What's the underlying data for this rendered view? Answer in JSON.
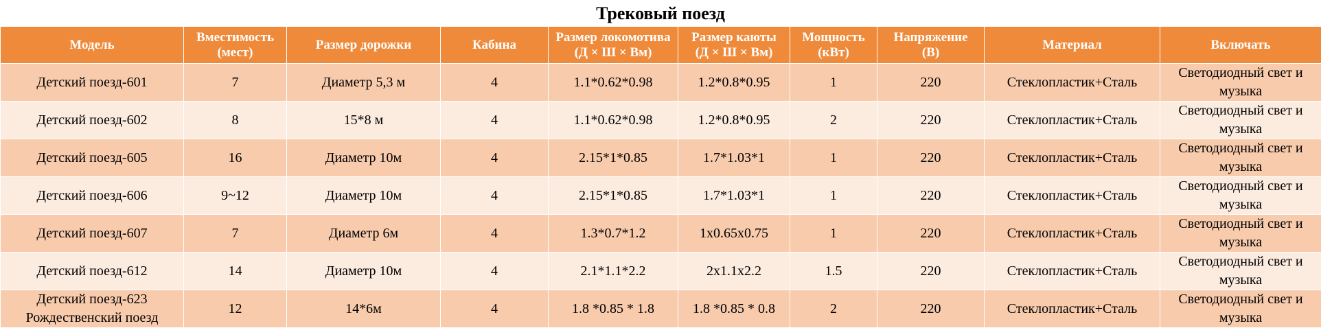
{
  "title": "Трековый поезд",
  "colors": {
    "header_bg": "#ef8a3a",
    "row_dark": "#f8cbad",
    "row_light": "#fcebdf"
  },
  "columns": [
    [
      "Модель"
    ],
    [
      "Вместимость",
      "(мест)"
    ],
    [
      "Размер дорожки"
    ],
    [
      "Кабина"
    ],
    [
      "Размер локомотива",
      "(Д × Ш × Вм)"
    ],
    [
      "Размер каюты",
      "(Д × Ш × Вм)"
    ],
    [
      "Мощность",
      "(кВт)"
    ],
    [
      "Напряжение",
      "(В)"
    ],
    [
      "Материал"
    ],
    [
      "Включать"
    ]
  ],
  "rows": [
    [
      [
        "Детский поезд-601"
      ],
      [
        "7"
      ],
      [
        "Диаметр 5,3 м"
      ],
      [
        "4"
      ],
      [
        "1.1*0.62*0.98"
      ],
      [
        "1.2*0.8*0.95"
      ],
      [
        "1"
      ],
      [
        "220"
      ],
      [
        "Стеклопластик+Сталь"
      ],
      [
        "Светодиодный свет и",
        "музыка"
      ]
    ],
    [
      [
        "Детский поезд-602"
      ],
      [
        "8"
      ],
      [
        "15*8 м"
      ],
      [
        "4"
      ],
      [
        "1.1*0.62*0.98"
      ],
      [
        "1.2*0.8*0.95"
      ],
      [
        "2"
      ],
      [
        "220"
      ],
      [
        "Стеклопластик+Сталь"
      ],
      [
        "Светодиодный свет и",
        "музыка"
      ]
    ],
    [
      [
        "Детский поезд-605"
      ],
      [
        "16"
      ],
      [
        "Диаметр 10м"
      ],
      [
        "4"
      ],
      [
        "2.15*1*0.85"
      ],
      [
        "1.7*1.03*1"
      ],
      [
        "1"
      ],
      [
        "220"
      ],
      [
        "Стеклопластик+Сталь"
      ],
      [
        "Светодиодный свет и",
        "музыка"
      ]
    ],
    [
      [
        "Детский поезд-606"
      ],
      [
        "9~12"
      ],
      [
        "Диаметр 10м"
      ],
      [
        "4"
      ],
      [
        "2.15*1*0.85"
      ],
      [
        "1.7*1.03*1"
      ],
      [
        "1"
      ],
      [
        "220"
      ],
      [
        "Стеклопластик+Сталь"
      ],
      [
        "Светодиодный свет и",
        "музыка"
      ]
    ],
    [
      [
        "Детский поезд-607"
      ],
      [
        "7"
      ],
      [
        "Диаметр 6м"
      ],
      [
        "4"
      ],
      [
        "1.3*0.7*1.2"
      ],
      [
        "1x0.65x0.75"
      ],
      [
        "1"
      ],
      [
        "220"
      ],
      [
        "Стеклопластик+Сталь"
      ],
      [
        "Светодиодный свет и",
        "музыка"
      ]
    ],
    [
      [
        "Детский поезд-612"
      ],
      [
        "14"
      ],
      [
        "Диаметр 10м"
      ],
      [
        "4"
      ],
      [
        "2.1*1.1*2.2"
      ],
      [
        "2x1.1x2.2"
      ],
      [
        "1.5"
      ],
      [
        "220"
      ],
      [
        "Стеклопластик+Сталь"
      ],
      [
        "Светодиодный свет и",
        "музыка"
      ]
    ],
    [
      [
        "Детский поезд-623",
        "Рождественский поезд"
      ],
      [
        "12"
      ],
      [
        "14*6м"
      ],
      [
        "4"
      ],
      [
        "1.8 *0.85 * 1.8"
      ],
      [
        "1.8 *0.85 * 0.8"
      ],
      [
        "2"
      ],
      [
        "220"
      ],
      [
        "Стеклопластик+Сталь"
      ],
      [
        "Светодиодный свет и",
        "музыка"
      ]
    ]
  ]
}
